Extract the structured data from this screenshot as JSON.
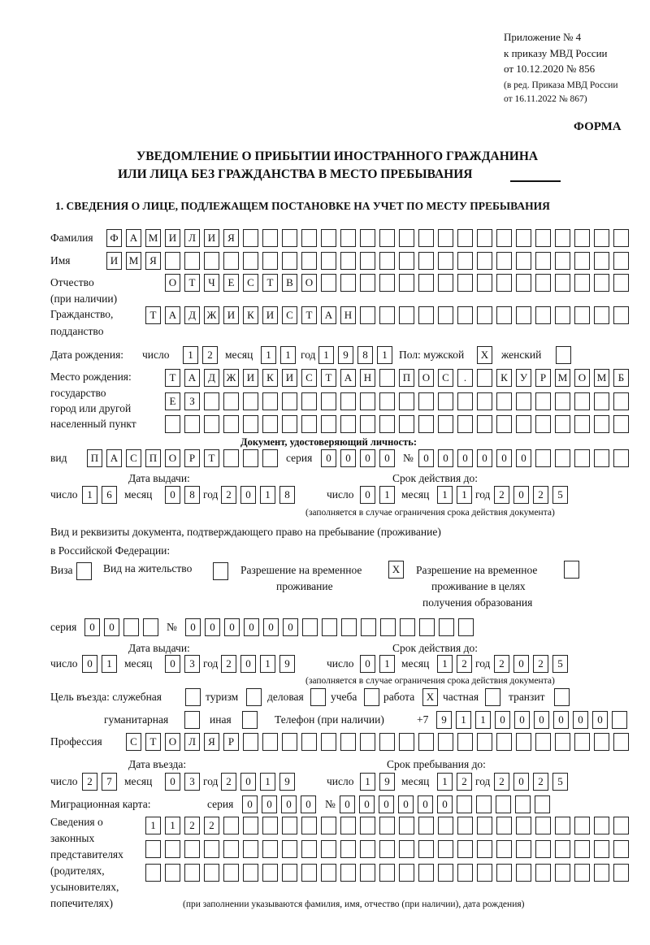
{
  "header": {
    "appendix": "Приложение № 4",
    "order": "к приказу МВД России",
    "order_date": "от 10.12.2020 № 856",
    "edition1": "(в ред. Приказа МВД России",
    "edition2": "от 16.11.2022 № 867)",
    "form_label": "ФОРМА",
    "title1": "УВЕДОМЛЕНИЕ О ПРИБЫТИИ ИНОСТРАННОГО ГРАЖДАНИНА",
    "title2": "ИЛИ ЛИЦА БЕЗ ГРАЖДАНСТВА В МЕСТО ПРЕБЫВАНИЯ"
  },
  "section1": {
    "heading": "1. СВЕДЕНИЯ О ЛИЦЕ, ПОДЛЕЖАЩЕМ ПОСТАНОВКЕ НА УЧЕТ ПО МЕСТУ ПРЕБЫВАНИЯ"
  },
  "labels": {
    "surname": "Фамилия",
    "name": "Имя",
    "patronymic": "Отчество",
    "patronymic_note": "(при наличии)",
    "citizenship1": "Гражданство,",
    "citizenship2": "подданство",
    "birth_date": "Дата рождения:",
    "day": "число",
    "month": "месяц",
    "year": "год",
    "sex_male": "Пол: мужской",
    "sex_female": "женский",
    "birthplace1": "Место рождения:",
    "birthplace2": "государство",
    "birthplace3": "город или другой",
    "birthplace4": "населенный пункт",
    "id_doc": "Документ, удостоверяющий личность:",
    "kind": "вид",
    "series": "серия",
    "number": "№",
    "issue_date": "Дата выдачи:",
    "valid_until": "Срок действия до:",
    "validity_note": "(заполняется в случае ограничения срока действия документа)",
    "stay_doc1": "Вид и реквизиты документа, подтверждающего право на пребывание (проживание)",
    "stay_doc2": "в Российской Федерации:",
    "visa": "Виза",
    "residence": "Вид на жительство",
    "temp_res1": "Разрешение на временное",
    "temp_res2": "проживание",
    "temp_edu1": "Разрешение на временное",
    "temp_edu2": "проживание в целях",
    "temp_edu3": "получения образования",
    "purpose": "Цель въезда: служебная",
    "tourism": "туризм",
    "business": "деловая",
    "study": "учеба",
    "work": "работа",
    "private": "частная",
    "transit": "транзит",
    "humanitarian": "гуманитарная",
    "other": "иная",
    "phone": "Телефон (при наличии)",
    "phone_prefix": "+7",
    "profession": "Профессия",
    "entry_date": "Дата въезда:",
    "stay_until": "Срок пребывания до:",
    "migration_card": "Миграционная карта:",
    "reps1": "Сведения о",
    "reps2": "законных",
    "reps3": "представителях",
    "reps4": "(родителях,",
    "reps5": "усыновителях,",
    "reps6": "попечителях)",
    "reps_note": "(при заполнении указываются фамилия, имя, отчество (при наличии), дата рождения)"
  },
  "person": {
    "surname": "ФАМИЛИЯ",
    "name": "ИМЯ",
    "patronymic": "ОТЧЕСТВО",
    "citizenship": "ТАДЖИКИСТАН",
    "birth_day": "12",
    "birth_month": "11",
    "birth_year": "1981",
    "sex_male": "X",
    "sex_female": "",
    "birthplace_row1": "ТАДЖИКИСТАН ПОС. КУРМОМБ",
    "birthplace_row2": "ЕЗ",
    "birthplace_row3": "",
    "id_kind": "ПАСПОРТ",
    "id_series": "0000",
    "id_number": "000000",
    "id_issue_day": "16",
    "id_issue_month": "08",
    "id_issue_year": "2018",
    "id_valid_day": "01",
    "id_valid_month": "11",
    "id_valid_year": "2025",
    "visa": "",
    "residence": "",
    "temp_res": "X",
    "temp_edu": "",
    "stay_series": "00",
    "stay_number": "000000",
    "stay_issue_day": "01",
    "stay_issue_month": "03",
    "stay_issue_year": "2019",
    "stay_valid_day": "01",
    "stay_valid_month": "12",
    "stay_valid_year": "2025",
    "p_service": "",
    "p_tourism": "",
    "p_business": "",
    "p_study": "",
    "p_work": "X",
    "p_private": "",
    "p_transit": "",
    "p_humanitarian": "",
    "p_other": "",
    "phone": "911000000",
    "profession": "СТОЛЯР",
    "entry_day": "27",
    "entry_month": "03",
    "entry_year": "2019",
    "until_day": "19",
    "until_month": "12",
    "until_year": "2025",
    "mc_series": "0000",
    "mc_number": "000000",
    "reps_row1": "1122",
    "reps_row2": "",
    "reps_row3": ""
  }
}
